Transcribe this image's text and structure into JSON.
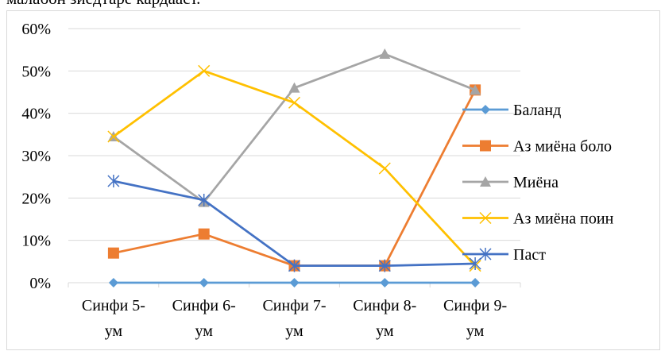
{
  "caption": "малабон зиёдтаре кардааст.",
  "chart_data": {
    "type": "line",
    "categories": [
      "Синфи 5-ум",
      "Синфи 6-ум",
      "Синфи 7-ум",
      "Синфи 8-ум",
      "Синфи 9-ум"
    ],
    "category_lines": [
      [
        "Синфи 5-",
        "ум"
      ],
      [
        "Синфи 6-",
        "ум"
      ],
      [
        "Синфи 7-",
        "ум"
      ],
      [
        "Синфи 8-",
        "ум"
      ],
      [
        "Синфи 9-",
        "ум"
      ]
    ],
    "ylim": [
      0,
      60
    ],
    "yticks": [
      "0%",
      "10%",
      "20%",
      "30%",
      "40%",
      "50%",
      "60%"
    ],
    "grid": true,
    "legend_position": "right",
    "series": [
      {
        "name": "Баланд",
        "values": [
          0,
          0,
          0,
          0,
          0
        ],
        "color": "#5b9bd5",
        "marker": "diamond"
      },
      {
        "name": "Аз миёна боло",
        "values": [
          7,
          11.5,
          4,
          4,
          45.5
        ],
        "color": "#ed7d31",
        "marker": "square"
      },
      {
        "name": "Миёна",
        "values": [
          34.5,
          19,
          46,
          54,
          45.5
        ],
        "color": "#a5a5a5",
        "marker": "triangle"
      },
      {
        "name": "Аз миёна поин",
        "values": [
          34.5,
          50,
          42.5,
          27,
          4
        ],
        "color": "#ffc000",
        "marker": "x"
      },
      {
        "name": "Паст",
        "values": [
          24,
          19.5,
          4,
          4,
          4.5
        ],
        "color": "#4472c4",
        "marker": "star"
      }
    ]
  }
}
